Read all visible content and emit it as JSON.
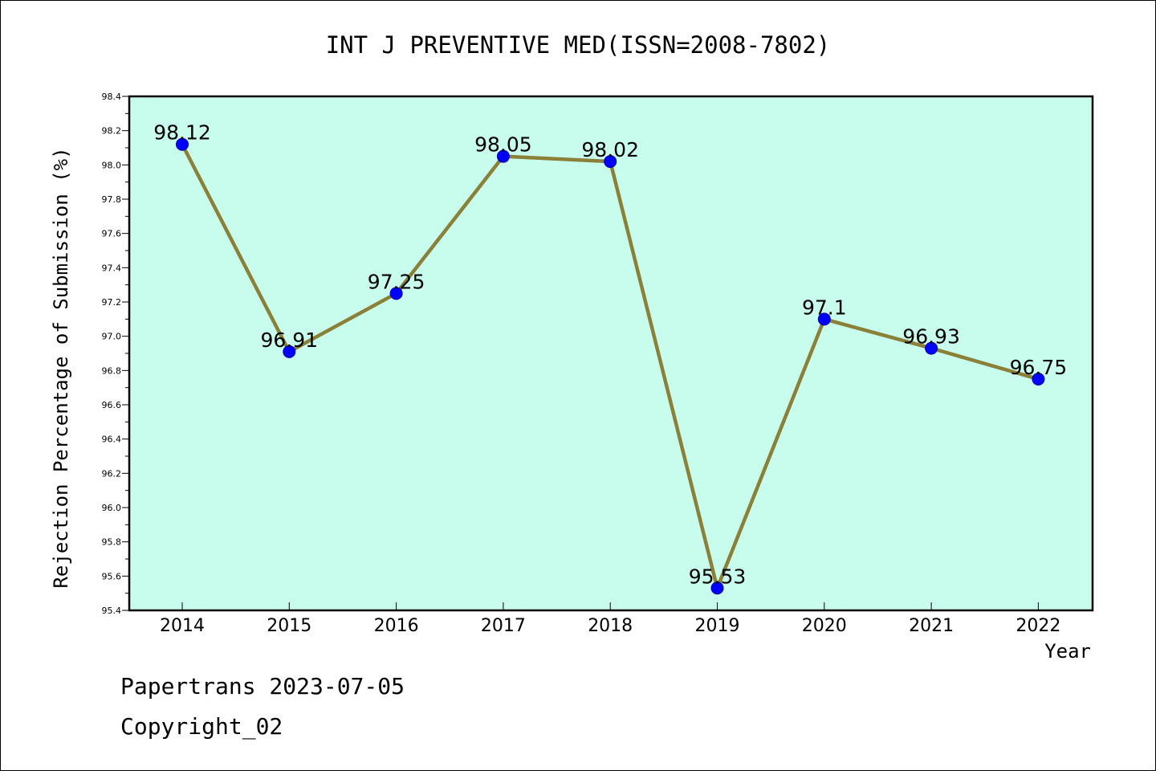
{
  "chart_data": {
    "type": "line",
    "title": "INT J PREVENTIVE MED(ISSN=2008-7802)",
    "xlabel": "Year",
    "ylabel": "Rejection Percentage of Submission (%)",
    "categories": [
      "2014",
      "2015",
      "2016",
      "2017",
      "2018",
      "2019",
      "2020",
      "2021",
      "2022"
    ],
    "values": [
      98.12,
      96.91,
      97.25,
      98.05,
      98.02,
      95.53,
      97.1,
      96.93,
      96.75
    ],
    "data_labels": [
      "98.12",
      "96.91",
      "97.25",
      "98.05",
      "98.02",
      "95.53",
      "97.1",
      "96.93",
      "96.75"
    ],
    "ylim": [
      95.4,
      98.4
    ],
    "yticks": [
      "95.4",
      "95.6",
      "95.8",
      "96.0",
      "96.2",
      "96.4",
      "96.6",
      "96.8",
      "97.0",
      "97.2",
      "97.4",
      "97.6",
      "97.8",
      "98.0",
      "98.2",
      "98.4"
    ],
    "grid": false,
    "colors": {
      "plot_background": "#c8fcec",
      "line": "#8b8038",
      "marker": "#0000ff"
    }
  },
  "footer": {
    "line1": "Papertrans 2023-07-05",
    "line2": "Copyright_02"
  }
}
